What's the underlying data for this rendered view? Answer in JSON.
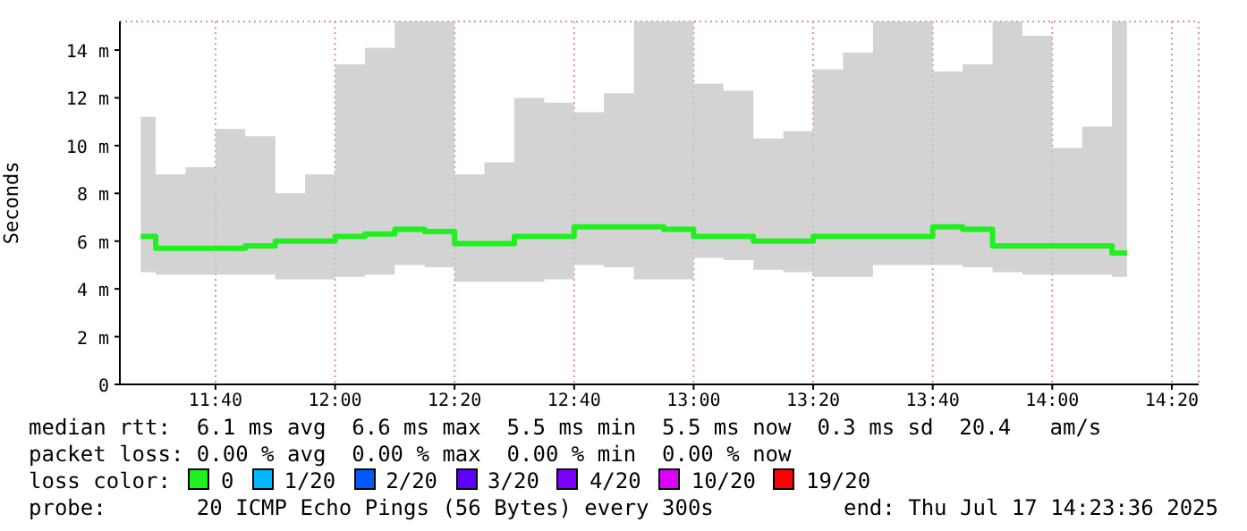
{
  "chart_data": {
    "type": "step",
    "ylabel": "Seconds",
    "x": [
      11.4583,
      11.5417,
      11.625,
      11.7083,
      11.7917,
      11.875,
      11.9583,
      12.0417,
      12.125,
      12.2083,
      12.2917,
      12.375,
      12.4583,
      12.5417,
      12.625,
      12.7083,
      12.7917,
      12.875,
      12.9583,
      13.0417,
      13.125,
      13.2083,
      13.2917,
      13.375,
      13.4583,
      13.5417,
      13.625,
      13.7083,
      13.7917,
      13.875,
      13.9583,
      14.0417,
      14.125,
      14.2083
    ],
    "series": [
      {
        "name": "0",
        "color": "#20f020",
        "values": [
          6.2,
          5.7,
          5.7,
          5.7,
          5.8,
          6.0,
          6.0,
          6.2,
          6.3,
          6.5,
          6.4,
          5.9,
          5.9,
          6.2,
          6.2,
          6.6,
          6.6,
          6.6,
          6.5,
          6.2,
          6.2,
          6.0,
          6.0,
          6.2,
          6.2,
          6.2,
          6.2,
          6.6,
          6.5,
          5.8,
          5.8,
          5.8,
          5.8,
          5.5
        ],
        "lower": [
          4.7,
          4.6,
          4.6,
          4.6,
          4.6,
          4.4,
          4.4,
          4.5,
          4.6,
          5.0,
          4.9,
          4.3,
          4.3,
          4.3,
          4.4,
          5.0,
          4.9,
          4.4,
          4.4,
          5.3,
          5.2,
          4.8,
          4.7,
          4.5,
          4.5,
          5.0,
          5.0,
          5.0,
          4.9,
          4.7,
          4.6,
          4.6,
          4.6,
          4.5
        ],
        "upper": [
          11.2,
          8.8,
          9.1,
          10.7,
          10.4,
          8.0,
          8.8,
          13.4,
          14.1,
          15.2,
          15.2,
          8.8,
          9.3,
          12.0,
          11.8,
          11.4,
          12.2,
          15.2,
          15.2,
          12.6,
          12.3,
          10.3,
          10.6,
          13.2,
          13.9,
          15.2,
          15.2,
          13.1,
          13.4,
          15.2,
          14.6,
          9.9,
          10.8,
          15.2
        ]
      },
      {
        "name": "1/20",
        "color": "#00b8ff",
        "values": [
          null,
          null,
          null,
          null,
          null,
          null,
          null,
          null,
          null,
          null,
          null,
          null,
          null,
          null,
          null,
          null,
          null,
          null,
          null,
          null,
          null,
          null,
          null,
          null,
          null,
          null,
          null,
          null,
          null,
          null,
          null,
          null,
          null,
          null
        ]
      },
      {
        "name": "2/20",
        "color": "#0059ff",
        "values": [
          null,
          null,
          null,
          null,
          null,
          null,
          null,
          null,
          null,
          null,
          null,
          null,
          null,
          null,
          null,
          null,
          null,
          null,
          null,
          null,
          null,
          null,
          null,
          null,
          null,
          null,
          null,
          null,
          null,
          null,
          null,
          null,
          null,
          null
        ]
      },
      {
        "name": "3/20",
        "color": "#5e00ff",
        "values": [
          null,
          null,
          null,
          null,
          null,
          null,
          null,
          null,
          null,
          null,
          null,
          null,
          null,
          null,
          null,
          null,
          null,
          null,
          null,
          null,
          null,
          null,
          null,
          null,
          null,
          null,
          null,
          null,
          null,
          null,
          null,
          null,
          null,
          null
        ]
      },
      {
        "name": "4/20",
        "color": "#7e00ff",
        "values": [
          null,
          null,
          null,
          null,
          null,
          null,
          null,
          null,
          null,
          null,
          null,
          null,
          null,
          null,
          null,
          null,
          null,
          null,
          null,
          null,
          null,
          null,
          null,
          null,
          null,
          null,
          null,
          null,
          null,
          null,
          null,
          null,
          null,
          null
        ]
      },
      {
        "name": "10/20",
        "color": "#dd00ff",
        "values": [
          null,
          null,
          null,
          null,
          null,
          null,
          null,
          null,
          null,
          null,
          null,
          null,
          null,
          null,
          null,
          null,
          null,
          null,
          null,
          null,
          null,
          null,
          null,
          null,
          null,
          null,
          null,
          null,
          null,
          null,
          null,
          null,
          null,
          null
        ]
      },
      {
        "name": "19/20",
        "color": "#ff0000",
        "values": [
          null,
          null,
          null,
          null,
          null,
          null,
          null,
          null,
          null,
          null,
          null,
          null,
          null,
          null,
          null,
          null,
          null,
          null,
          null,
          null,
          null,
          null,
          null,
          null,
          null,
          null,
          null,
          null,
          null,
          null,
          null,
          null,
          null,
          null
        ]
      }
    ],
    "xlim": [
      11.4,
      14.4083
    ],
    "xticks": [
      {
        "value": 11.6667,
        "label": "11:40"
      },
      {
        "value": 12,
        "label": "12:00"
      },
      {
        "value": 12.3333,
        "label": "12:20"
      },
      {
        "value": 12.6667,
        "label": "12:40"
      },
      {
        "value": 13,
        "label": "13:00"
      },
      {
        "value": 13.3333,
        "label": "13:20"
      },
      {
        "value": 13.6667,
        "label": "13:40"
      },
      {
        "value": 14,
        "label": "14:00"
      },
      {
        "value": 14.3333,
        "label": "14:20"
      }
    ],
    "ylim": [
      0,
      15.2
    ],
    "yticks": [
      0,
      {
        "value": 2,
        "label": "2 m"
      },
      {
        "value": 4,
        "label": "4 m"
      },
      {
        "value": 6,
        "label": "6 m"
      },
      {
        "value": 8,
        "label": "8 m"
      },
      {
        "value": 10,
        "label": "10 m"
      },
      {
        "value": 12,
        "label": "12 m"
      },
      {
        "value": 14,
        "label": "14 m"
      }
    ],
    "grid": true,
    "legend": "bottom",
    "annotations": [
      "median rtt:  6.1 ms avg  6.6 ms max  5.5 ms min  5.5 ms now  0.3 ms sd  20.4   am/s",
      "packet loss: 0.00 % avg  0.00 % max  0.00 % min  0.00 % now",
      "loss color:",
      "probe:       20 ICMP Echo Pings (56 Bytes) every 300s",
      "end: Thu Jul 17 14:23:36 2025"
    ]
  }
}
